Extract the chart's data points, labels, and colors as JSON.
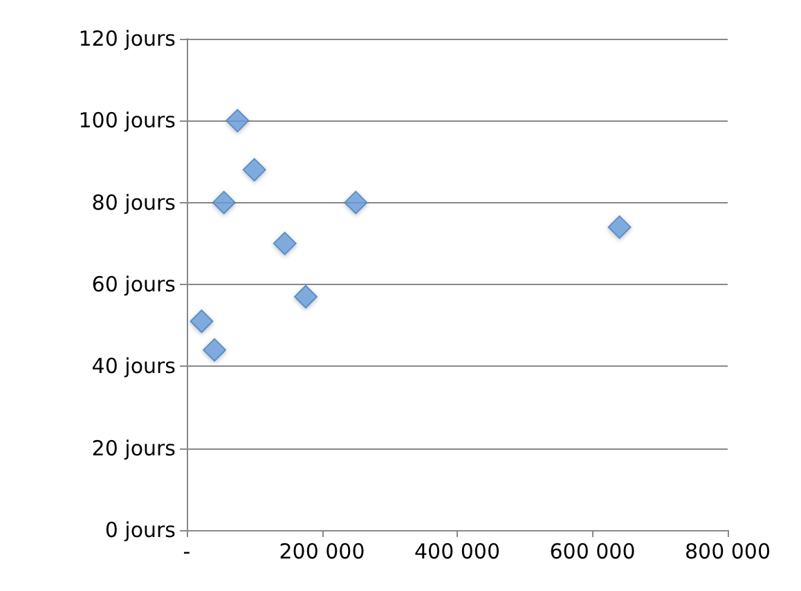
{
  "chart_data": {
    "type": "scatter",
    "marker": "diamond",
    "grid": "y",
    "x": [
      75000,
      100000,
      55000,
      250000,
      145000,
      176000,
      22000,
      41000,
      640000
    ],
    "series": [
      {
        "color": "#6a9fdc",
        "values": [
          100,
          88,
          80,
          80,
          70,
          57,
          51,
          44,
          74
        ]
      }
    ],
    "xlim": [
      0,
      800000
    ],
    "xticks": [
      {
        "value": 0,
        "label": "-"
      },
      {
        "value": 200000,
        "label": "200 000"
      },
      {
        "value": 400000,
        "label": "400 000"
      },
      {
        "value": 600000,
        "label": "600 000"
      },
      {
        "value": 800000,
        "label": "800 000"
      }
    ],
    "ylim": [
      0,
      120
    ],
    "yticks": [
      {
        "value": 0,
        "label": "0 jours"
      },
      {
        "value": 20,
        "label": "20 jours"
      },
      {
        "value": 40,
        "label": "40 jours"
      },
      {
        "value": 60,
        "label": "60 jours"
      },
      {
        "value": 80,
        "label": "80 jours"
      },
      {
        "value": 100,
        "label": "100 jours"
      },
      {
        "value": 120,
        "label": "120 jours"
      }
    ]
  }
}
